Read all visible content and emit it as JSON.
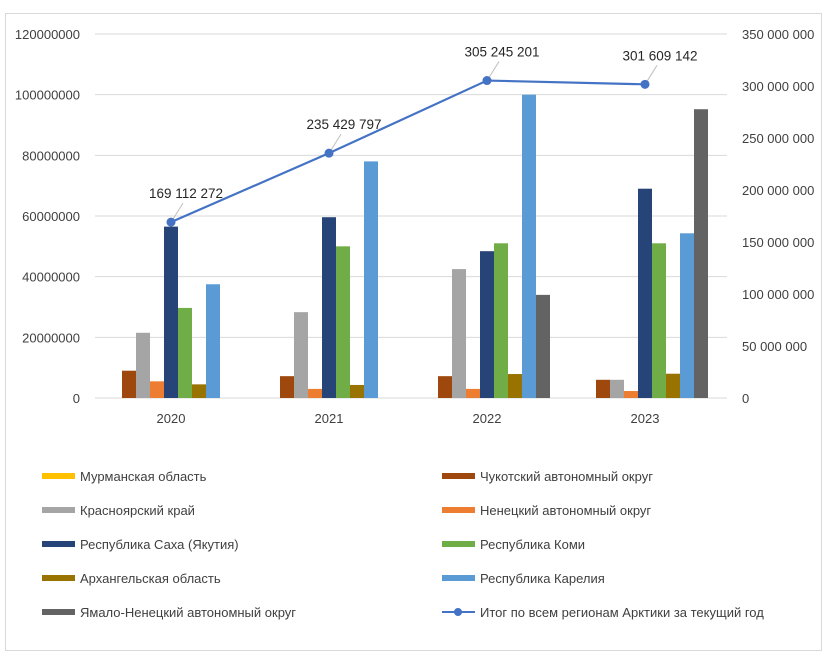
{
  "chart_data": {
    "type": "bar",
    "title": "",
    "xlabel": "",
    "ylabel": "",
    "categories": [
      "2020",
      "2021",
      "2022",
      "2023"
    ],
    "ylim": [
      0,
      120000000
    ],
    "y_ticks": [
      "0",
      "20000000",
      "40000000",
      "60000000",
      "80000000",
      "100000000",
      "120000000"
    ],
    "y2lim": [
      0,
      350000000
    ],
    "y2_ticks": [
      "0",
      "50 000 000",
      "100 000 000",
      "150 000 000",
      "200 000 000",
      "250 000 000",
      "300 000 000",
      "350 000 000"
    ],
    "grid": true,
    "legend_position": "bottom",
    "series": [
      {
        "name": "Мурманская область",
        "color": "#ffc000",
        "values": [
          0,
          0,
          0,
          0
        ]
      },
      {
        "name": "Чукотский автономный округ",
        "color": "#9e480e",
        "values": [
          9000000,
          7200000,
          7200000,
          6000000
        ]
      },
      {
        "name": "Красноярский край",
        "color": "#a5a5a5",
        "values": [
          21500000,
          28300000,
          42500000,
          6000000
        ]
      },
      {
        "name": "Ненецкий автономный округ",
        "color": "#ed7d31",
        "values": [
          5500000,
          3000000,
          3000000,
          2300000
        ]
      },
      {
        "name": "Республика Саха (Якутия)",
        "color": "#264478",
        "values": [
          56500000,
          59600000,
          48400000,
          69000000
        ]
      },
      {
        "name": "Республика Коми",
        "color": "#70ad47",
        "values": [
          29700000,
          50000000,
          51000000,
          51000000
        ]
      },
      {
        "name": "Архангельская область",
        "color": "#997300",
        "values": [
          4500000,
          4300000,
          7900000,
          8000000
        ]
      },
      {
        "name": "Республика Карелия",
        "color": "#5b9bd5",
        "values": [
          37500000,
          78000000,
          100000000,
          54300000
        ]
      },
      {
        "name": "Ямало-Ненецкий автономный округ",
        "color": "#636363",
        "values": [
          0,
          0,
          34000000,
          95200000
        ]
      }
    ],
    "line_series": {
      "name": "Итог по всем регионам Арктики за текущий год",
      "color": "#4472c4",
      "axis": "secondary",
      "values": [
        169112272,
        235429797,
        305245201,
        301609142
      ],
      "data_labels": [
        "169 112 272",
        "235 429 797",
        "305 245 201",
        "301 609 142"
      ]
    }
  }
}
